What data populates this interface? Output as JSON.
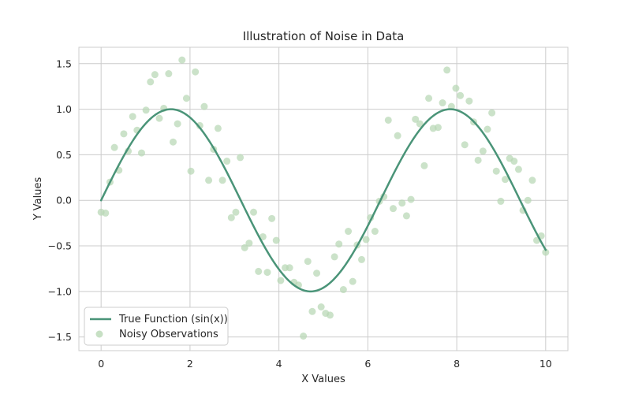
{
  "chart_data": {
    "type": "line",
    "title": "Illustration of Noise in Data",
    "xlabel": "X Values",
    "ylabel": "Y Values",
    "xlim": [
      -0.5,
      10.5
    ],
    "ylim": [
      -1.65,
      1.68
    ],
    "xticks": [
      0,
      2,
      4,
      6,
      8,
      10
    ],
    "xtick_labels": [
      "0",
      "2",
      "4",
      "6",
      "8",
      "10"
    ],
    "yticks": [
      -1.5,
      -1.0,
      -0.5,
      0.0,
      0.5,
      1.0,
      1.5
    ],
    "ytick_labels": [
      "−1.5",
      "−1.0",
      "−0.5",
      "0.0",
      "0.5",
      "1.0",
      "1.5"
    ],
    "grid": true,
    "legend_position": "lower-left",
    "colors": {
      "true_function": "#4a9478",
      "noisy_observations": "#b7d7b4",
      "grid": "#cccccc",
      "spine": "#cccccc"
    },
    "series": [
      {
        "name": "True Function (sin(x))",
        "kind": "line",
        "function": "sin",
        "x_range": [
          0,
          10
        ]
      },
      {
        "name": "Noisy Observations",
        "kind": "scatter",
        "points": [
          [
            0.0,
            -0.13
          ],
          [
            0.1,
            -0.14
          ],
          [
            0.2,
            0.2
          ],
          [
            0.3,
            0.58
          ],
          [
            0.4,
            0.33
          ],
          [
            0.51,
            0.73
          ],
          [
            0.61,
            0.54
          ],
          [
            0.71,
            0.92
          ],
          [
            0.81,
            0.77
          ],
          [
            0.91,
            0.52
          ],
          [
            1.01,
            0.99
          ],
          [
            1.11,
            1.3
          ],
          [
            1.21,
            1.38
          ],
          [
            1.31,
            0.9
          ],
          [
            1.41,
            1.01
          ],
          [
            1.52,
            1.39
          ],
          [
            1.62,
            0.64
          ],
          [
            1.72,
            0.84
          ],
          [
            1.82,
            1.54
          ],
          [
            1.92,
            1.12
          ],
          [
            2.02,
            0.32
          ],
          [
            2.12,
            1.41
          ],
          [
            2.22,
            0.82
          ],
          [
            2.32,
            1.03
          ],
          [
            2.42,
            0.22
          ],
          [
            2.53,
            0.56
          ],
          [
            2.63,
            0.79
          ],
          [
            2.73,
            0.22
          ],
          [
            2.83,
            0.43
          ],
          [
            2.93,
            -0.19
          ],
          [
            3.03,
            -0.13
          ],
          [
            3.13,
            0.47
          ],
          [
            3.23,
            -0.52
          ],
          [
            3.33,
            -0.47
          ],
          [
            3.43,
            -0.13
          ],
          [
            3.54,
            -0.78
          ],
          [
            3.64,
            -0.4
          ],
          [
            3.74,
            -0.79
          ],
          [
            3.84,
            -0.2
          ],
          [
            3.94,
            -0.44
          ],
          [
            4.04,
            -0.88
          ],
          [
            4.14,
            -0.74
          ],
          [
            4.24,
            -0.74
          ],
          [
            4.34,
            -0.9
          ],
          [
            4.44,
            -0.93
          ],
          [
            4.55,
            -1.49
          ],
          [
            4.65,
            -0.67
          ],
          [
            4.75,
            -1.22
          ],
          [
            4.85,
            -0.8
          ],
          [
            4.95,
            -1.17
          ],
          [
            5.05,
            -1.24
          ],
          [
            5.15,
            -1.26
          ],
          [
            5.25,
            -0.62
          ],
          [
            5.35,
            -0.48
          ],
          [
            5.45,
            -0.98
          ],
          [
            5.56,
            -0.34
          ],
          [
            5.66,
            -0.89
          ],
          [
            5.76,
            -0.49
          ],
          [
            5.86,
            -0.65
          ],
          [
            5.96,
            -0.43
          ],
          [
            6.06,
            -0.19
          ],
          [
            6.16,
            -0.34
          ],
          [
            6.26,
            -0.01
          ],
          [
            6.36,
            0.04
          ],
          [
            6.46,
            0.88
          ],
          [
            6.57,
            -0.09
          ],
          [
            6.67,
            0.71
          ],
          [
            6.77,
            -0.03
          ],
          [
            6.87,
            -0.17
          ],
          [
            6.97,
            0.01
          ],
          [
            7.07,
            0.89
          ],
          [
            7.17,
            0.84
          ],
          [
            7.27,
            0.38
          ],
          [
            7.37,
            1.12
          ],
          [
            7.47,
            0.79
          ],
          [
            7.58,
            0.8
          ],
          [
            7.68,
            1.07
          ],
          [
            7.78,
            1.43
          ],
          [
            7.88,
            1.03
          ],
          [
            7.98,
            1.23
          ],
          [
            8.08,
            1.15
          ],
          [
            8.18,
            0.61
          ],
          [
            8.28,
            1.09
          ],
          [
            8.38,
            0.86
          ],
          [
            8.48,
            0.44
          ],
          [
            8.59,
            0.54
          ],
          [
            8.69,
            0.78
          ],
          [
            8.79,
            0.96
          ],
          [
            8.89,
            0.32
          ],
          [
            8.99,
            -0.01
          ],
          [
            9.09,
            0.23
          ],
          [
            9.19,
            0.46
          ],
          [
            9.29,
            0.43
          ],
          [
            9.39,
            0.34
          ],
          [
            9.49,
            -0.11
          ],
          [
            9.6,
            0.0
          ],
          [
            9.7,
            0.22
          ],
          [
            9.8,
            -0.44
          ],
          [
            9.9,
            -0.39
          ],
          [
            10.0,
            -0.57
          ]
        ]
      }
    ]
  }
}
